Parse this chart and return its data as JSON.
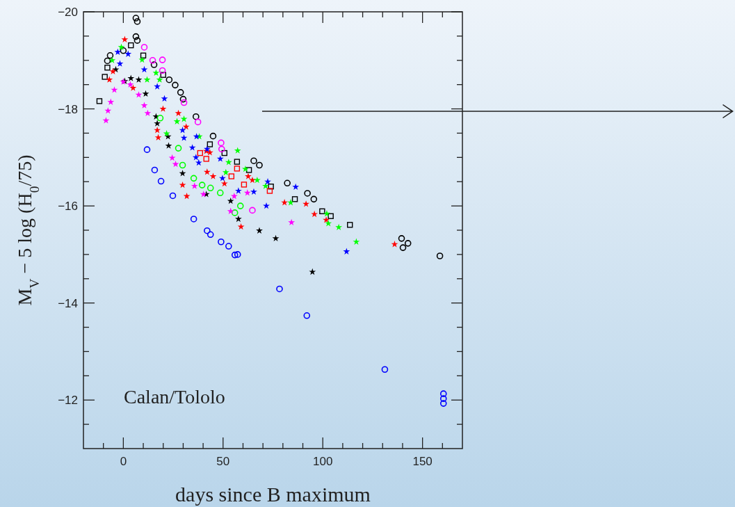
{
  "chart_data": {
    "type": "scatter",
    "xlabel": "days since B maximum",
    "ylabel": "M$_{V}$ − 5 log (H$_{0}$/75)",
    "annotations": [
      "Calan/Tololo"
    ],
    "xlim": [
      -20,
      170
    ],
    "ylim": [
      -11,
      -20
    ],
    "xticks": [
      {
        "value": -10,
        "label": null
      },
      0,
      {
        "value": 10,
        "label": null
      },
      {
        "value": 20,
        "label": null
      },
      {
        "value": 30,
        "label": null
      },
      {
        "value": 40,
        "label": null
      },
      50,
      {
        "value": 60,
        "label": null
      },
      {
        "value": 70,
        "label": null
      },
      {
        "value": 80,
        "label": null
      },
      {
        "value": 90,
        "label": null
      },
      100,
      {
        "value": 110,
        "label": null
      },
      {
        "value": 120,
        "label": null
      },
      {
        "value": 130,
        "label": null
      },
      {
        "value": 140,
        "label": null
      },
      150,
      {
        "value": 160,
        "label": null
      }
    ],
    "yticks": [
      -20,
      {
        "value": -19.5,
        "label": null
      },
      {
        "value": -19,
        "label": null
      },
      {
        "value": -18.5,
        "label": null
      },
      -18,
      {
        "value": -17.5,
        "label": null
      },
      {
        "value": -17,
        "label": null
      },
      {
        "value": -16.5,
        "label": null
      },
      -16,
      {
        "value": -15.5,
        "label": null
      },
      {
        "value": -15,
        "label": null
      },
      {
        "value": -14.5,
        "label": null
      },
      -14,
      {
        "value": -13.5,
        "label": null
      },
      {
        "value": -13,
        "label": null
      },
      {
        "value": -12.5,
        "label": null
      },
      -12,
      {
        "value": -11.5,
        "label": null
      }
    ],
    "grid": false,
    "series": [
      {
        "color": "#0000ff",
        "marker": "circle",
        "x": [
          11.9,
          15.7,
          18.9,
          24.8,
          35.3,
          42.0,
          43.7,
          49.0,
          52.8,
          55.9,
          57.3,
          78.3,
          92.0,
          131.1,
          160.5,
          160.5,
          160.5
        ],
        "values": [
          -17.16,
          -16.74,
          -16.51,
          -16.21,
          -15.73,
          -15.49,
          -15.41,
          -15.26,
          -15.17,
          -14.99,
          -15.0,
          -14.29,
          -13.74,
          -12.63,
          -12.13,
          -12.03,
          -11.93
        ]
      },
      {
        "color": "#000000",
        "marker": "circle",
        "x": [
          -6.6,
          -8,
          0,
          6.3,
          7,
          6.3,
          7,
          15.4,
          23,
          26,
          28.7,
          30,
          36.4,
          45,
          65.4,
          68.2,
          82.2,
          92.3,
          95.5,
          139.5,
          140.2,
          142.7,
          158.7
        ],
        "values": [
          -19.1,
          -18.99,
          -19.2,
          -19.87,
          -19.8,
          -19.49,
          -19.41,
          -18.91,
          -18.6,
          -18.49,
          -18.34,
          -18.2,
          -17.84,
          -17.44,
          -16.93,
          -16.84,
          -16.47,
          -16.26,
          -16.14,
          -15.33,
          -15.14,
          -15.23,
          -14.97
        ]
      },
      {
        "color": "#000000",
        "marker": "square",
        "x": [
          -12,
          -9.3,
          -8,
          3.8,
          10,
          20,
          43.4,
          50.7,
          57,
          63,
          74,
          86,
          99.7,
          104,
          113.6
        ],
        "values": [
          -18.16,
          -18.66,
          -18.85,
          -19.31,
          -19.1,
          -18.7,
          -17.27,
          -17.09,
          -16.91,
          -16.74,
          -16.4,
          -16.14,
          -15.89,
          -15.79,
          -15.61
        ]
      },
      {
        "color": "#000000",
        "marker": "star",
        "x": [
          -3.8,
          0.7,
          3.8,
          7.7,
          11.2,
          16.4,
          17,
          22.4,
          22.7,
          29.7,
          41.6,
          53.8,
          57.7,
          68.2,
          76.4,
          94.8
        ],
        "values": [
          -18.81,
          -18.57,
          -18.63,
          -18.6,
          -18.31,
          -17.84,
          -17.7,
          -17.43,
          -17.24,
          -16.67,
          -16.24,
          -16.1,
          -15.73,
          -15.49,
          -15.33,
          -14.64
        ]
      },
      {
        "color": "#ff0000",
        "marker": "star",
        "x": [
          -7,
          -5.2,
          0.7,
          4.9,
          17,
          17.5,
          19.9,
          27.6,
          29.7,
          31.5,
          31.8,
          41.6,
          42,
          43.4,
          45,
          50.7,
          59,
          62.6,
          64.7,
          80.8,
          91.6,
          95.8,
          101.7,
          136
        ],
        "values": [
          -18.6,
          -18.77,
          -19.43,
          -18.43,
          -17.56,
          -17.41,
          -18,
          -17.91,
          -16.43,
          -17.63,
          -16.2,
          -17.13,
          -16.7,
          -17.1,
          -16.61,
          -16.46,
          -15.57,
          -16.61,
          -16.53,
          -16.07,
          -16.04,
          -15.83,
          -15.71,
          -15.21
        ]
      },
      {
        "color": "#ff0000",
        "marker": "square",
        "x": [
          38.5,
          41.6,
          54.2,
          57,
          60.5,
          73.4
        ],
        "values": [
          -17.09,
          -16.97,
          -16.61,
          -16.77,
          -16.44,
          -16.31
        ]
      },
      {
        "color": "#00ff00",
        "marker": "star",
        "x": [
          -5.6,
          -1,
          9.4,
          11.9,
          16.4,
          18.2,
          21.7,
          26.9,
          30.4,
          38.1,
          51.4,
          52.8,
          57.3,
          61.2,
          67.1,
          71.3,
          83.9,
          102,
          102.8,
          108,
          116.8
        ],
        "values": [
          -19,
          -19.27,
          -19.01,
          -18.6,
          -18.74,
          -18.6,
          -17.49,
          -17.74,
          -17.79,
          -17.43,
          -16.69,
          -16.9,
          -17.14,
          -16.76,
          -16.53,
          -16.41,
          -16.07,
          -15.84,
          -15.64,
          -15.56,
          -15.26
        ]
      },
      {
        "color": "#00ff00",
        "marker": "circle",
        "x": [
          18.5,
          27.6,
          29.7,
          35.3,
          39.5,
          43.7,
          48.6,
          58.7,
          55.9
        ],
        "values": [
          -17.81,
          -17.19,
          -16.84,
          -16.57,
          -16.43,
          -16.37,
          -16.27,
          -16,
          -15.86
        ]
      },
      {
        "color": "#0000ff",
        "marker": "star",
        "x": [
          -2.8,
          -1.7,
          2.4,
          10.5,
          17,
          20.6,
          29.7,
          30.4,
          34.6,
          36.4,
          36.7,
          37.8,
          42,
          48.6,
          49.7,
          57.7,
          65.4,
          71.7,
          72.4,
          86.4,
          111.9
        ],
        "values": [
          -19.17,
          -18.93,
          -19.13,
          -18.81,
          -18.46,
          -18.21,
          -17.56,
          -17.4,
          -17.2,
          -17,
          -17.43,
          -16.89,
          -17.17,
          -16.97,
          -16.57,
          -16.31,
          -16.29,
          -16,
          -16.5,
          -16.39,
          -15.06
        ]
      },
      {
        "color": "#ff00ff",
        "marker": "circle",
        "x": [
          10.5,
          14.7,
          19.6,
          19.6,
          30.4,
          37.4,
          49,
          49.3,
          64.7
        ],
        "values": [
          -19.27,
          -19,
          -19.01,
          -18.79,
          -18.13,
          -17.73,
          -17.3,
          -17.17,
          -15.91
        ]
      },
      {
        "color": "#ff00ff",
        "marker": "star",
        "x": [
          -8.7,
          -7.7,
          -6.3,
          -4.5,
          0,
          3.5,
          7.7,
          10.5,
          12.2,
          24.5,
          26.2,
          35.7,
          40.2,
          55.6,
          53.8,
          62.2,
          84.3
        ],
        "values": [
          -17.76,
          -17.96,
          -18.14,
          -18.39,
          -18.56,
          -18.5,
          -18.29,
          -18.07,
          -17.91,
          -16.99,
          -16.86,
          -16.41,
          -16.24,
          -16.2,
          -15.89,
          -16.27,
          -15.66
        ]
      }
    ]
  }
}
